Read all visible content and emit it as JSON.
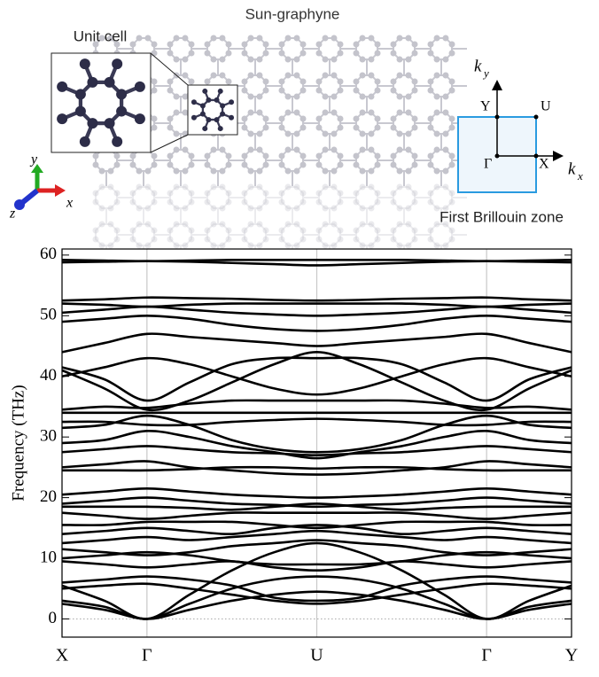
{
  "illustration": {
    "title": "Sun-graphyne",
    "unit_cell_label": "Unit cell",
    "bz_label": "First Brillouin zone",
    "bz_points": {
      "gamma": "Γ",
      "x": "X",
      "y": "Y",
      "u": "U"
    },
    "k_x": "k",
    "k_x_sub": "x",
    "k_y": "k",
    "k_y_sub": "y",
    "axes": {
      "x": "x",
      "y": "y",
      "z": "z"
    }
  },
  "chart_data": {
    "type": "line",
    "y_label": "Frequency (THz)",
    "x": [
      0,
      0.5,
      1,
      1.5,
      2,
      2.5,
      3,
      3.5,
      4,
      4.5,
      5,
      5.5,
      6
    ],
    "xlim": [
      0,
      6
    ],
    "xticks": [
      {
        "value": 0,
        "label": "X"
      },
      {
        "value": 1,
        "label": "Γ"
      },
      {
        "value": 3,
        "label": "U"
      },
      {
        "value": 5,
        "label": "Γ"
      },
      {
        "value": 6,
        "label": "Y"
      }
    ],
    "ylim": [
      -3,
      61
    ],
    "yticks": [
      0,
      10,
      20,
      30,
      40,
      50,
      60
    ],
    "grid": true,
    "series": [
      {
        "color": "#000000",
        "values": [
          2.5,
          1.5,
          0,
          1.5,
          3,
          4,
          4.5,
          4,
          3,
          1.5,
          0,
          1.5,
          2.5
        ]
      },
      {
        "color": "#000000",
        "values": [
          3,
          2,
          0,
          2.5,
          5,
          6.5,
          7,
          6.5,
          5,
          2.5,
          0,
          2,
          3
        ]
      },
      {
        "color": "#000000",
        "values": [
          5.5,
          3,
          0,
          4,
          8,
          11,
          12.5,
          11,
          8,
          4,
          0,
          3,
          5.5
        ]
      },
      {
        "color": "#000000",
        "values": [
          5,
          5.5,
          5.8,
          5,
          4,
          3,
          2.5,
          3,
          4,
          5,
          5.8,
          5.5,
          5
        ]
      },
      {
        "color": "#000000",
        "values": [
          6,
          6.5,
          7,
          6.5,
          5.5,
          3.5,
          3,
          3.5,
          5.5,
          6.5,
          7,
          6.5,
          6
        ]
      },
      {
        "color": "#000000",
        "values": [
          9.5,
          9,
          8.5,
          9,
          9.5,
          8.5,
          8,
          8.5,
          9.5,
          9,
          8.5,
          9,
          9.5
        ]
      },
      {
        "color": "#000000",
        "values": [
          10,
          10.5,
          11,
          10.5,
          9.5,
          9,
          9,
          9,
          9.5,
          10.5,
          11,
          10.5,
          10
        ]
      },
      {
        "color": "#000000",
        "values": [
          11.5,
          11,
          10.5,
          11,
          12,
          12.5,
          13,
          12.5,
          12,
          11,
          10.5,
          11,
          11.5
        ]
      },
      {
        "color": "#000000",
        "values": [
          12.5,
          13,
          13.5,
          13,
          13.5,
          14,
          14.5,
          14,
          13.5,
          13,
          13.5,
          13,
          12.5
        ]
      },
      {
        "color": "#000000",
        "values": [
          14,
          14.5,
          15,
          14.5,
          14,
          15,
          15.5,
          15,
          14,
          14.5,
          15,
          14.5,
          14
        ]
      },
      {
        "color": "#000000",
        "values": [
          15.5,
          15.5,
          16,
          16,
          16,
          15.5,
          15,
          15.5,
          16,
          16,
          16,
          15.5,
          15.5
        ]
      },
      {
        "color": "#000000",
        "values": [
          17.5,
          17,
          16.5,
          17,
          17.5,
          17.5,
          17.5,
          17.5,
          17.5,
          17,
          16.5,
          17,
          17.5
        ]
      },
      {
        "color": "#000000",
        "values": [
          18.5,
          18.5,
          18.5,
          18.3,
          18,
          18.5,
          19,
          18.5,
          18,
          18.3,
          18.5,
          18.5,
          18.5
        ]
      },
      {
        "color": "#000000",
        "values": [
          19,
          19.5,
          20,
          19.5,
          19,
          18.8,
          18.5,
          18.8,
          19,
          19.5,
          20,
          19.5,
          19
        ]
      },
      {
        "color": "#000000",
        "values": [
          20.5,
          21,
          21.5,
          21,
          20.5,
          20.2,
          20,
          20.2,
          20.5,
          21,
          21.5,
          21,
          20.5
        ]
      },
      {
        "color": "#000000",
        "values": [
          24.5,
          24.5,
          24.5,
          24.7,
          25,
          25,
          24.8,
          25,
          25,
          24.7,
          24.5,
          24.5,
          24.5
        ]
      },
      {
        "color": "#000000",
        "values": [
          25,
          25.5,
          26,
          25,
          24.5,
          24,
          23.8,
          24,
          24.5,
          25,
          26,
          25.5,
          25
        ]
      },
      {
        "color": "#000000",
        "values": [
          27.5,
          28,
          28.5,
          28,
          27.5,
          27.3,
          27,
          27.3,
          27.5,
          28,
          28.5,
          28,
          27.5
        ]
      },
      {
        "color": "#000000",
        "values": [
          29,
          29.5,
          31,
          30,
          28.5,
          27.5,
          26.5,
          27.5,
          28.5,
          30,
          31,
          29.5,
          29
        ]
      },
      {
        "color": "#000000",
        "values": [
          31.5,
          32,
          33.5,
          32,
          29.5,
          28,
          27.5,
          28,
          29.5,
          32,
          33.5,
          32,
          31.5
        ]
      },
      {
        "color": "#000000",
        "values": [
          32.5,
          32.5,
          32,
          32,
          32.5,
          32.8,
          33,
          32.8,
          32.5,
          32,
          32,
          32.5,
          32.5
        ]
      },
      {
        "color": "#000000",
        "values": [
          34,
          34,
          34,
          34,
          34,
          34,
          34,
          34,
          34,
          34,
          34,
          34,
          34
        ]
      },
      {
        "color": "#000000",
        "values": [
          34.5,
          35,
          34.8,
          35.5,
          36,
          36,
          36,
          36,
          36,
          35.5,
          34.8,
          35,
          34.5
        ]
      },
      {
        "color": "#000000",
        "values": [
          41,
          38,
          34.5,
          36,
          39,
          42,
          44,
          42,
          39,
          36,
          34.5,
          38,
          41
        ]
      },
      {
        "color": "#000000",
        "values": [
          41.5,
          39.5,
          36,
          39,
          42,
          43,
          43,
          43,
          42,
          39,
          36,
          39.5,
          41.5
        ]
      },
      {
        "color": "#000000",
        "values": [
          40,
          41.5,
          43,
          42,
          40,
          38,
          37,
          38,
          40,
          42,
          43,
          41.5,
          40
        ]
      },
      {
        "color": "#000000",
        "values": [
          44,
          45.5,
          47,
          46.5,
          46,
          45.5,
          45,
          45.5,
          46,
          46.5,
          47,
          45.5,
          44
        ]
      },
      {
        "color": "#000000",
        "values": [
          49,
          49.5,
          50,
          49.5,
          48.5,
          47.8,
          47.5,
          47.8,
          48.5,
          49.5,
          50,
          49.5,
          49
        ]
      },
      {
        "color": "#000000",
        "values": [
          50.5,
          51,
          51.5,
          51,
          50.5,
          50.2,
          50,
          50.2,
          50.5,
          51,
          51.5,
          51,
          50.5
        ]
      },
      {
        "color": "#000000",
        "values": [
          52,
          51.8,
          51.5,
          51.8,
          52,
          52,
          52,
          52,
          52,
          51.8,
          51.5,
          51.8,
          52
        ]
      },
      {
        "color": "#000000",
        "values": [
          52.5,
          52.7,
          53,
          52.9,
          52.8,
          52.6,
          52.5,
          52.6,
          52.8,
          52.9,
          53,
          52.7,
          52.5
        ]
      },
      {
        "color": "#000000",
        "values": [
          58.8,
          58.9,
          59,
          58.9,
          58.7,
          58.5,
          58.3,
          58.5,
          58.7,
          58.9,
          59,
          58.9,
          58.8
        ]
      },
      {
        "color": "#000000",
        "values": [
          59.2,
          59.1,
          59,
          59.1,
          59.2,
          59.2,
          59.2,
          59.2,
          59.2,
          59.1,
          59,
          59.1,
          59.2
        ]
      }
    ]
  }
}
